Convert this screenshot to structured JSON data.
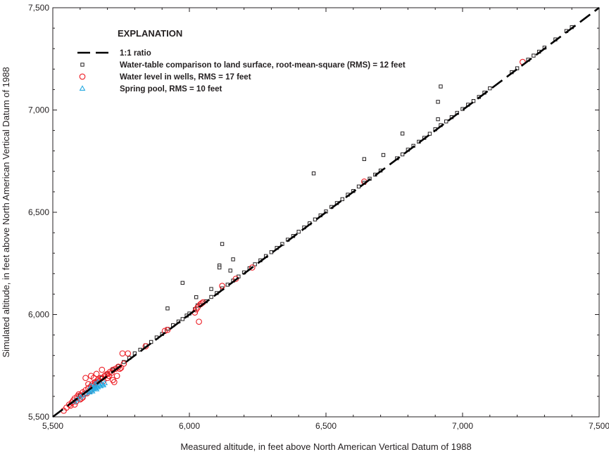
{
  "chart_data": {
    "type": "scatter",
    "xlabel": "Measured altitude, in feet above North American Vertical Datum of 1988",
    "ylabel": "Simulated altitude, in feet above North American Vertical Datum of 1988",
    "xlim": [
      5500,
      7500
    ],
    "ylim": [
      5500,
      7500
    ],
    "x_ticks": [
      5500,
      6000,
      6500,
      7000,
      7500
    ],
    "y_ticks": [
      5500,
      6000,
      6500,
      7000,
      7500
    ],
    "x_tick_labels": [
      "5,500",
      "6,000",
      "6,500",
      "7,000",
      "7,500"
    ],
    "y_tick_labels": [
      "5,500",
      "6,000",
      "6,500",
      "7,000",
      "7,500"
    ],
    "grid": false,
    "legend": {
      "title": "EXPLANATION",
      "placement": "top-left",
      "entries": [
        {
          "label": "1:1 ratio",
          "symbol": "dashed-line"
        },
        {
          "label": "Water-table comparison to land surface, root-mean-square (RMS) = 12 feet",
          "symbol": "square"
        },
        {
          "label": "Water level in wells, RMS = 17 feet",
          "symbol": "circle"
        },
        {
          "label": "Spring pool, RMS = 10 feet",
          "symbol": "triangle"
        }
      ]
    },
    "reference_line": {
      "name": "1:1 ratio",
      "x": [
        5500,
        7500
      ],
      "y": [
        5500,
        7500
      ],
      "color": "#000000"
    },
    "series": [
      {
        "name": "Water-table comparison to land surface, root-mean-square (RMS) = 12 feet",
        "marker": "square",
        "color": "#231f20",
        "points": [
          [
            5600,
            5605
          ],
          [
            5640,
            5645
          ],
          [
            5660,
            5668
          ],
          [
            5680,
            5690
          ],
          [
            5700,
            5710
          ],
          [
            5720,
            5730
          ],
          [
            5740,
            5748
          ],
          [
            5760,
            5768
          ],
          [
            5780,
            5788
          ],
          [
            5800,
            5810
          ],
          [
            5820,
            5828
          ],
          [
            5840,
            5850
          ],
          [
            5860,
            5866
          ],
          [
            5880,
            5888
          ],
          [
            5900,
            5905
          ],
          [
            5920,
            5930
          ],
          [
            5940,
            5948
          ],
          [
            5960,
            5966
          ],
          [
            5975,
            5978
          ],
          [
            5990,
            5995
          ],
          [
            6000,
            6005
          ],
          [
            6020,
            6026
          ],
          [
            6040,
            6046
          ],
          [
            6060,
            6065
          ],
          [
            6080,
            6086
          ],
          [
            6100,
            6105
          ],
          [
            6120,
            6128
          ],
          [
            6140,
            6146
          ],
          [
            6160,
            6166
          ],
          [
            6180,
            6186
          ],
          [
            6200,
            6206
          ],
          [
            6220,
            6226
          ],
          [
            6240,
            6246
          ],
          [
            6260,
            6265
          ],
          [
            6280,
            6286
          ],
          [
            6300,
            6305
          ],
          [
            6320,
            6326
          ],
          [
            6340,
            6345
          ],
          [
            6360,
            6366
          ],
          [
            6380,
            6384
          ],
          [
            6400,
            6405
          ],
          [
            6420,
            6426
          ],
          [
            6440,
            6446
          ],
          [
            6460,
            6465
          ],
          [
            6480,
            6485
          ],
          [
            6500,
            6504
          ],
          [
            6520,
            6526
          ],
          [
            6540,
            6545
          ],
          [
            6560,
            6564
          ],
          [
            6580,
            6586
          ],
          [
            6600,
            6604
          ],
          [
            6620,
            6626
          ],
          [
            6640,
            6644
          ],
          [
            6660,
            6664
          ],
          [
            6680,
            6684
          ],
          [
            6700,
            6704
          ],
          [
            6760,
            6764
          ],
          [
            6780,
            6783
          ],
          [
            6800,
            6806
          ],
          [
            6820,
            6825
          ],
          [
            6840,
            6845
          ],
          [
            6860,
            6864
          ],
          [
            6880,
            6884
          ],
          [
            6900,
            6906
          ],
          [
            6920,
            6926
          ],
          [
            6940,
            6944
          ],
          [
            6960,
            6965
          ],
          [
            6980,
            6986
          ],
          [
            7000,
            7005
          ],
          [
            7020,
            7026
          ],
          [
            7040,
            7044
          ],
          [
            7060,
            7064
          ],
          [
            7080,
            7085
          ],
          [
            7100,
            7106
          ],
          [
            7180,
            7185
          ],
          [
            7200,
            7204
          ],
          [
            7240,
            7246
          ],
          [
            7260,
            7266
          ],
          [
            7280,
            7285
          ],
          [
            7300,
            7305
          ],
          [
            7340,
            7345
          ],
          [
            7380,
            7386
          ],
          [
            7400,
            7405
          ],
          [
            5920,
            6030
          ],
          [
            5975,
            6155
          ],
          [
            6025,
            6085
          ],
          [
            6030,
            6045
          ],
          [
            6080,
            6125
          ],
          [
            6110,
            6240
          ],
          [
            6110,
            6230
          ],
          [
            6120,
            6345
          ],
          [
            6150,
            6215
          ],
          [
            6160,
            6270
          ],
          [
            6455,
            6690
          ],
          [
            6640,
            6760
          ],
          [
            6710,
            6780
          ],
          [
            6780,
            6885
          ],
          [
            6910,
            7040
          ],
          [
            6920,
            7115
          ],
          [
            6910,
            6955
          ]
        ]
      },
      {
        "name": "Water level in wells, RMS = 17 feet",
        "marker": "circle",
        "color": "#ed1c24",
        "points": [
          [
            5540,
            5530
          ],
          [
            5550,
            5545
          ],
          [
            5560,
            5560
          ],
          [
            5565,
            5555
          ],
          [
            5570,
            5570
          ],
          [
            5575,
            5580
          ],
          [
            5580,
            5590
          ],
          [
            5585,
            5575
          ],
          [
            5590,
            5600
          ],
          [
            5595,
            5610
          ],
          [
            5600,
            5605
          ],
          [
            5605,
            5590
          ],
          [
            5610,
            5620
          ],
          [
            5615,
            5612
          ],
          [
            5620,
            5630
          ],
          [
            5625,
            5615
          ],
          [
            5630,
            5640
          ],
          [
            5635,
            5625
          ],
          [
            5640,
            5650
          ],
          [
            5645,
            5660
          ],
          [
            5650,
            5655
          ],
          [
            5655,
            5670
          ],
          [
            5660,
            5665
          ],
          [
            5665,
            5680
          ],
          [
            5670,
            5675
          ],
          [
            5675,
            5690
          ],
          [
            5680,
            5690
          ],
          [
            5685,
            5675
          ],
          [
            5690,
            5700
          ],
          [
            5695,
            5705
          ],
          [
            5700,
            5710
          ],
          [
            5705,
            5700
          ],
          [
            5710,
            5720
          ],
          [
            5715,
            5715
          ],
          [
            5720,
            5730
          ],
          [
            5725,
            5670
          ],
          [
            5730,
            5735
          ],
          [
            5735,
            5700
          ],
          [
            5740,
            5745
          ],
          [
            5745,
            5735
          ],
          [
            5750,
            5740
          ],
          [
            5755,
            5810
          ],
          [
            5760,
            5760
          ],
          [
            5775,
            5810
          ],
          [
            5620,
            5690
          ],
          [
            5640,
            5700
          ],
          [
            5660,
            5710
          ],
          [
            5680,
            5730
          ],
          [
            5700,
            5690
          ],
          [
            5720,
            5680
          ],
          [
            5580,
            5560
          ],
          [
            5600,
            5585
          ],
          [
            5610,
            5595
          ],
          [
            5630,
            5660
          ],
          [
            5650,
            5690
          ],
          [
            5840,
            5845
          ],
          [
            5910,
            5920
          ],
          [
            5920,
            5925
          ],
          [
            6020,
            6010
          ],
          [
            6025,
            6025
          ],
          [
            6030,
            6035
          ],
          [
            6035,
            5965
          ],
          [
            6040,
            6050
          ],
          [
            6045,
            6055
          ],
          [
            6050,
            6060
          ],
          [
            6120,
            6140
          ],
          [
            6170,
            6175
          ],
          [
            6230,
            6230
          ],
          [
            6640,
            6650
          ],
          [
            7220,
            7235
          ]
        ]
      },
      {
        "name": "Spring pool, RMS = 10 feet",
        "marker": "triangle",
        "color": "#27aae1",
        "points": [
          [
            5580,
            5575
          ],
          [
            5590,
            5585
          ],
          [
            5600,
            5595
          ],
          [
            5610,
            5605
          ],
          [
            5620,
            5615
          ],
          [
            5630,
            5625
          ],
          [
            5635,
            5620
          ],
          [
            5640,
            5630
          ],
          [
            5645,
            5640
          ],
          [
            5650,
            5645
          ],
          [
            5655,
            5640
          ],
          [
            5660,
            5650
          ],
          [
            5665,
            5645
          ],
          [
            5670,
            5655
          ],
          [
            5675,
            5650
          ],
          [
            5680,
            5660
          ],
          [
            5685,
            5655
          ],
          [
            5690,
            5665
          ],
          [
            5650,
            5635
          ],
          [
            5655,
            5660
          ],
          [
            5660,
            5635
          ],
          [
            5665,
            5670
          ],
          [
            5640,
            5650
          ],
          [
            5645,
            5625
          ]
        ]
      }
    ]
  }
}
